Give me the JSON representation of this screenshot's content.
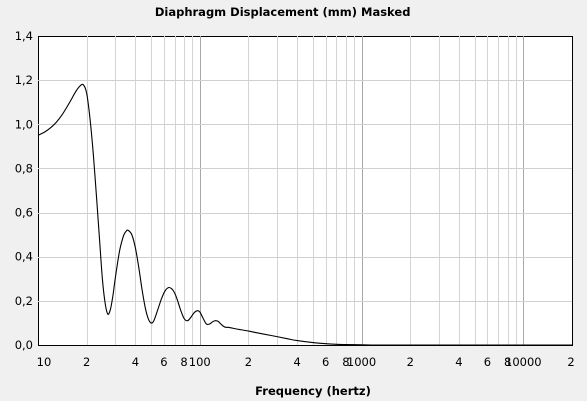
{
  "chart_data": {
    "type": "line",
    "title": "Diaphragm Displacement (mm)",
    "subtitle": "Masked",
    "xlabel": "Frequency (hertz)",
    "ylabel": "",
    "x_scale": "log",
    "xlim": [
      10,
      20000
    ],
    "ylim": [
      0,
      1.4
    ],
    "grid": true,
    "y_ticks": [
      {
        "value": 0.0,
        "label": "0,0"
      },
      {
        "value": 0.2,
        "label": "0,2"
      },
      {
        "value": 0.4,
        "label": "0,4"
      },
      {
        "value": 0.6,
        "label": "0,6"
      },
      {
        "value": 0.8,
        "label": "0,8"
      },
      {
        "value": 1.0,
        "label": "1,0"
      },
      {
        "value": 1.2,
        "label": "1,2"
      },
      {
        "value": 1.4,
        "label": "1,4"
      }
    ],
    "x_ticks": [
      {
        "value": 10,
        "label": "10"
      },
      {
        "value": 20,
        "label": "2"
      },
      {
        "value": 40,
        "label": "4"
      },
      {
        "value": 60,
        "label": "6"
      },
      {
        "value": 80,
        "label": "8"
      },
      {
        "value": 100,
        "label": "100"
      },
      {
        "value": 200,
        "label": "2"
      },
      {
        "value": 400,
        "label": "4"
      },
      {
        "value": 600,
        "label": "6"
      },
      {
        "value": 800,
        "label": "8"
      },
      {
        "value": 1000,
        "label": "1000"
      },
      {
        "value": 2000,
        "label": "2"
      },
      {
        "value": 4000,
        "label": "4"
      },
      {
        "value": 6000,
        "label": "6"
      },
      {
        "value": 8000,
        "label": "8"
      },
      {
        "value": 10000,
        "label": "10000"
      },
      {
        "value": 20000,
        "label": "2"
      }
    ],
    "series": [
      {
        "x": [
          10,
          11,
          12,
          13,
          14,
          15,
          16,
          17,
          18,
          19,
          20,
          21,
          22,
          23,
          24,
          25,
          26,
          27,
          28,
          29,
          30,
          31,
          32,
          33,
          34,
          35,
          36,
          38,
          40,
          42,
          44,
          46,
          48,
          50,
          52,
          55,
          58,
          61,
          64,
          67,
          70,
          73,
          76,
          80,
          84,
          88,
          92,
          96,
          100,
          105,
          110,
          115,
          120,
          125,
          130,
          135,
          140,
          145,
          150,
          160,
          170,
          180,
          200,
          220,
          250,
          300,
          350,
          400,
          500,
          600,
          700,
          800,
          1000,
          1200,
          1500,
          2000,
          3000,
          5000,
          10000,
          20000
        ],
        "y": [
          0.95,
          0.965,
          0.985,
          1.01,
          1.04,
          1.075,
          1.11,
          1.145,
          1.17,
          1.18,
          1.14,
          1.02,
          0.86,
          0.67,
          0.48,
          0.3,
          0.19,
          0.14,
          0.16,
          0.22,
          0.3,
          0.37,
          0.43,
          0.47,
          0.5,
          0.515,
          0.52,
          0.5,
          0.44,
          0.35,
          0.25,
          0.17,
          0.12,
          0.1,
          0.11,
          0.16,
          0.21,
          0.245,
          0.26,
          0.255,
          0.235,
          0.2,
          0.16,
          0.12,
          0.11,
          0.125,
          0.145,
          0.155,
          0.15,
          0.12,
          0.095,
          0.095,
          0.105,
          0.11,
          0.107,
          0.095,
          0.085,
          0.08,
          0.08,
          0.076,
          0.072,
          0.069,
          0.063,
          0.057,
          0.049,
          0.038,
          0.028,
          0.02,
          0.011,
          0.006,
          0.003,
          0.002,
          0.001,
          0.0,
          0.0,
          0.0,
          0.0,
          0.0,
          0.0,
          0.0
        ]
      }
    ]
  }
}
